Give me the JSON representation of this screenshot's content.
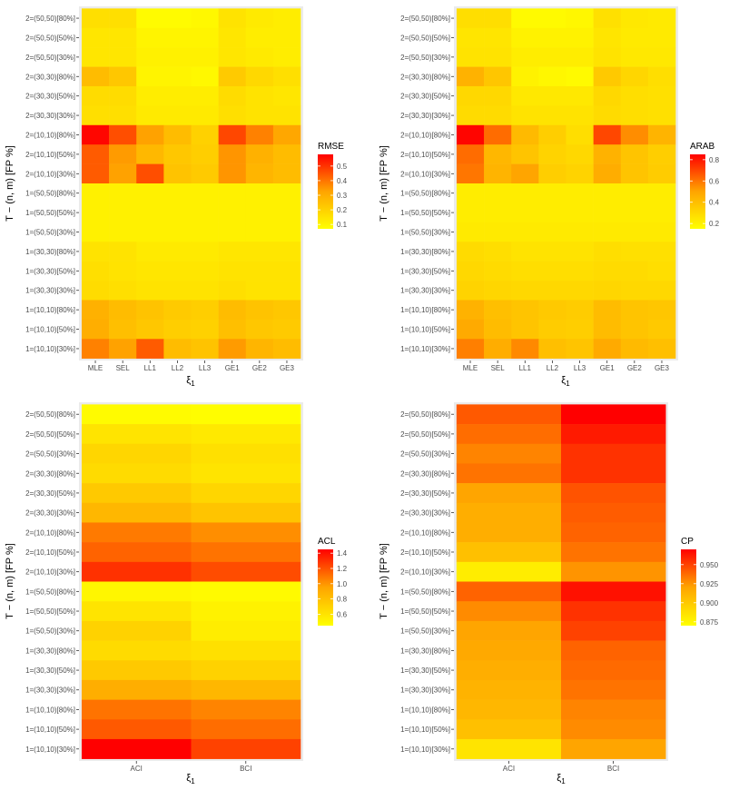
{
  "colors": {
    "panel_bg": "#ebebeb",
    "grid": "#ffffff",
    "scale_low": "#ffff00",
    "scale_mid": "#ffa500",
    "scale_high": "#ff0000"
  },
  "chart_data": [
    {
      "type": "heatmap",
      "xlabel": "ξ1",
      "ylabel": "T − (n, m) [FP %]",
      "legend_title": "RMSE",
      "legend_position": "right",
      "x": [
        "MLE",
        "SEL",
        "LL1",
        "LL2",
        "LL3",
        "GE1",
        "GE2",
        "GE3"
      ],
      "y": [
        "2=(50,50)[80%]",
        "2=(50,50)[50%]",
        "2=(50,50)[30%]",
        "2=(30,30)[80%]",
        "2=(30,30)[50%]",
        "2=(30,30)[30%]",
        "2=(10,10)[80%]",
        "2=(10,10)[50%]",
        "2=(10,10)[30%]",
        "1=(50,50)[80%]",
        "1=(50,50)[50%]",
        "1=(50,50)[30%]",
        "1=(30,30)[80%]",
        "1=(30,30)[50%]",
        "1=(30,30)[30%]",
        "1=(10,10)[80%]",
        "1=(10,10)[50%]",
        "1=(10,10)[30%]"
      ],
      "range": [
        0.07,
        0.58
      ],
      "legend_ticks": [
        0.1,
        0.2,
        0.3,
        0.4,
        0.5
      ],
      "legend_labels": [
        "0.1",
        "0.2",
        "0.3",
        "0.4",
        "0.5"
      ],
      "values": [
        [
          0.16,
          0.16,
          0.08,
          0.08,
          0.09,
          0.15,
          0.13,
          0.12
        ],
        [
          0.14,
          0.14,
          0.1,
          0.1,
          0.1,
          0.14,
          0.12,
          0.12
        ],
        [
          0.14,
          0.14,
          0.11,
          0.11,
          0.11,
          0.14,
          0.13,
          0.12
        ],
        [
          0.26,
          0.23,
          0.1,
          0.1,
          0.09,
          0.22,
          0.18,
          0.16
        ],
        [
          0.17,
          0.17,
          0.12,
          0.12,
          0.12,
          0.17,
          0.15,
          0.14
        ],
        [
          0.16,
          0.16,
          0.13,
          0.13,
          0.13,
          0.16,
          0.15,
          0.15
        ],
        [
          0.57,
          0.46,
          0.33,
          0.26,
          0.2,
          0.47,
          0.38,
          0.32
        ],
        [
          0.44,
          0.34,
          0.27,
          0.23,
          0.21,
          0.35,
          0.29,
          0.26
        ],
        [
          0.44,
          0.33,
          0.46,
          0.24,
          0.22,
          0.35,
          0.28,
          0.26
        ],
        [
          0.11,
          0.11,
          0.11,
          0.11,
          0.11,
          0.11,
          0.11,
          0.11
        ],
        [
          0.11,
          0.11,
          0.11,
          0.11,
          0.11,
          0.11,
          0.11,
          0.11
        ],
        [
          0.11,
          0.11,
          0.11,
          0.11,
          0.11,
          0.11,
          0.11,
          0.11
        ],
        [
          0.15,
          0.15,
          0.13,
          0.13,
          0.13,
          0.14,
          0.14,
          0.14
        ],
        [
          0.16,
          0.15,
          0.14,
          0.14,
          0.14,
          0.15,
          0.15,
          0.15
        ],
        [
          0.17,
          0.16,
          0.15,
          0.15,
          0.15,
          0.16,
          0.15,
          0.15
        ],
        [
          0.29,
          0.26,
          0.24,
          0.22,
          0.21,
          0.26,
          0.24,
          0.23
        ],
        [
          0.3,
          0.25,
          0.23,
          0.21,
          0.2,
          0.25,
          0.23,
          0.22
        ],
        [
          0.38,
          0.33,
          0.44,
          0.26,
          0.24,
          0.34,
          0.28,
          0.26
        ]
      ]
    },
    {
      "type": "heatmap",
      "xlabel": "ξ1",
      "ylabel": "T − (n, m) [FP %]",
      "legend_title": "ARAB",
      "legend_position": "right",
      "x": [
        "MLE",
        "SEL",
        "LL1",
        "LL2",
        "LL3",
        "GE1",
        "GE2",
        "GE3"
      ],
      "y": [
        "2=(50,50)[80%]",
        "2=(50,50)[50%]",
        "2=(50,50)[30%]",
        "2=(30,30)[80%]",
        "2=(30,30)[50%]",
        "2=(30,30)[30%]",
        "2=(10,10)[80%]",
        "2=(10,10)[50%]",
        "2=(10,10)[30%]",
        "1=(50,50)[80%]",
        "1=(50,50)[50%]",
        "1=(50,50)[30%]",
        "1=(30,30)[80%]",
        "1=(30,30)[50%]",
        "1=(30,30)[30%]",
        "1=(10,10)[80%]",
        "1=(10,10)[50%]",
        "1=(10,10)[30%]"
      ],
      "range": [
        0.15,
        0.85
      ],
      "legend_ticks": [
        0.2,
        0.4,
        0.6,
        0.8
      ],
      "legend_labels": [
        "0.2",
        "0.4",
        "0.6",
        "0.8"
      ],
      "values": [
        [
          0.28,
          0.28,
          0.17,
          0.17,
          0.18,
          0.27,
          0.24,
          0.23
        ],
        [
          0.25,
          0.25,
          0.2,
          0.2,
          0.2,
          0.25,
          0.23,
          0.23
        ],
        [
          0.26,
          0.26,
          0.22,
          0.22,
          0.22,
          0.26,
          0.24,
          0.24
        ],
        [
          0.45,
          0.37,
          0.2,
          0.18,
          0.17,
          0.36,
          0.31,
          0.28
        ],
        [
          0.3,
          0.3,
          0.24,
          0.24,
          0.24,
          0.3,
          0.28,
          0.27
        ],
        [
          0.29,
          0.29,
          0.26,
          0.26,
          0.26,
          0.29,
          0.28,
          0.27
        ],
        [
          0.84,
          0.62,
          0.42,
          0.34,
          0.28,
          0.7,
          0.55,
          0.44
        ],
        [
          0.62,
          0.43,
          0.38,
          0.32,
          0.3,
          0.45,
          0.38,
          0.34
        ],
        [
          0.6,
          0.44,
          0.5,
          0.34,
          0.32,
          0.47,
          0.38,
          0.35
        ],
        [
          0.22,
          0.22,
          0.22,
          0.22,
          0.22,
          0.22,
          0.22,
          0.22
        ],
        [
          0.22,
          0.22,
          0.22,
          0.22,
          0.22,
          0.22,
          0.22,
          0.22
        ],
        [
          0.23,
          0.23,
          0.23,
          0.23,
          0.23,
          0.23,
          0.23,
          0.23
        ],
        [
          0.29,
          0.28,
          0.26,
          0.26,
          0.26,
          0.28,
          0.27,
          0.27
        ],
        [
          0.3,
          0.29,
          0.28,
          0.28,
          0.28,
          0.29,
          0.29,
          0.28
        ],
        [
          0.32,
          0.31,
          0.3,
          0.3,
          0.3,
          0.31,
          0.3,
          0.3
        ],
        [
          0.45,
          0.4,
          0.38,
          0.36,
          0.35,
          0.41,
          0.38,
          0.37
        ],
        [
          0.48,
          0.41,
          0.38,
          0.35,
          0.34,
          0.41,
          0.38,
          0.36
        ],
        [
          0.58,
          0.47,
          0.56,
          0.4,
          0.38,
          0.48,
          0.42,
          0.4
        ]
      ]
    },
    {
      "type": "heatmap",
      "xlabel": "ξ1",
      "ylabel": "T − (n, m) [FP %]",
      "legend_title": "ACL",
      "legend_position": "right",
      "x": [
        "ACI",
        "BCI"
      ],
      "y": [
        "2=(50,50)[80%]",
        "2=(50,50)[50%]",
        "2=(50,50)[30%]",
        "2=(30,30)[80%]",
        "2=(30,30)[50%]",
        "2=(30,30)[30%]",
        "2=(10,10)[80%]",
        "2=(10,10)[50%]",
        "2=(10,10)[30%]",
        "1=(50,50)[80%]",
        "1=(50,50)[50%]",
        "1=(50,50)[30%]",
        "1=(30,30)[80%]",
        "1=(30,30)[50%]",
        "1=(30,30)[30%]",
        "1=(10,10)[80%]",
        "1=(10,10)[50%]",
        "1=(10,10)[30%]"
      ],
      "range": [
        0.45,
        1.45
      ],
      "legend_ticks": [
        0.6,
        0.8,
        1.0,
        1.2,
        1.4
      ],
      "legend_labels": [
        "0.6",
        "0.8",
        "1.0",
        "1.2",
        "1.4"
      ],
      "values": [
        [
          0.47,
          0.46
        ],
        [
          0.6,
          0.57
        ],
        [
          0.68,
          0.62
        ],
        [
          0.65,
          0.6
        ],
        [
          0.75,
          0.68
        ],
        [
          0.85,
          0.78
        ],
        [
          1.08,
          1.02
        ],
        [
          1.15,
          1.1
        ],
        [
          1.3,
          1.22
        ],
        [
          0.5,
          0.48
        ],
        [
          0.6,
          0.52
        ],
        [
          0.7,
          0.55
        ],
        [
          0.65,
          0.62
        ],
        [
          0.75,
          0.7
        ],
        [
          0.9,
          0.85
        ],
        [
          1.1,
          1.05
        ],
        [
          1.18,
          1.12
        ],
        [
          1.45,
          1.25
        ]
      ]
    },
    {
      "type": "heatmap",
      "xlabel": "ξ1",
      "ylabel": "T − (n, m) [FP %]",
      "legend_title": "CP",
      "legend_position": "right",
      "x": [
        "ACI",
        "BCI"
      ],
      "y": [
        "2=(50,50)[80%]",
        "2=(50,50)[50%]",
        "2=(50,50)[30%]",
        "2=(30,30)[80%]",
        "2=(30,30)[50%]",
        "2=(30,30)[30%]",
        "2=(10,10)[80%]",
        "2=(10,10)[50%]",
        "2=(10,10)[30%]",
        "1=(50,50)[80%]",
        "1=(50,50)[50%]",
        "1=(50,50)[30%]",
        "1=(30,30)[80%]",
        "1=(30,30)[50%]",
        "1=(30,30)[30%]",
        "1=(10,10)[80%]",
        "1=(10,10)[50%]",
        "1=(10,10)[30%]"
      ],
      "range": [
        0.87,
        0.97
      ],
      "legend_ticks": [
        0.875,
        0.9,
        0.925,
        0.95
      ],
      "legend_labels": [
        "0.875",
        "0.900",
        "0.925",
        "0.950"
      ],
      "values": [
        [
          0.943,
          0.97
        ],
        [
          0.937,
          0.962
        ],
        [
          0.93,
          0.955
        ],
        [
          0.935,
          0.955
        ],
        [
          0.92,
          0.945
        ],
        [
          0.915,
          0.942
        ],
        [
          0.915,
          0.94
        ],
        [
          0.905,
          0.935
        ],
        [
          0.88,
          0.925
        ],
        [
          0.94,
          0.965
        ],
        [
          0.928,
          0.955
        ],
        [
          0.92,
          0.95
        ],
        [
          0.918,
          0.94
        ],
        [
          0.915,
          0.938
        ],
        [
          0.912,
          0.935
        ],
        [
          0.91,
          0.93
        ],
        [
          0.905,
          0.928
        ],
        [
          0.885,
          0.92
        ]
      ]
    }
  ]
}
